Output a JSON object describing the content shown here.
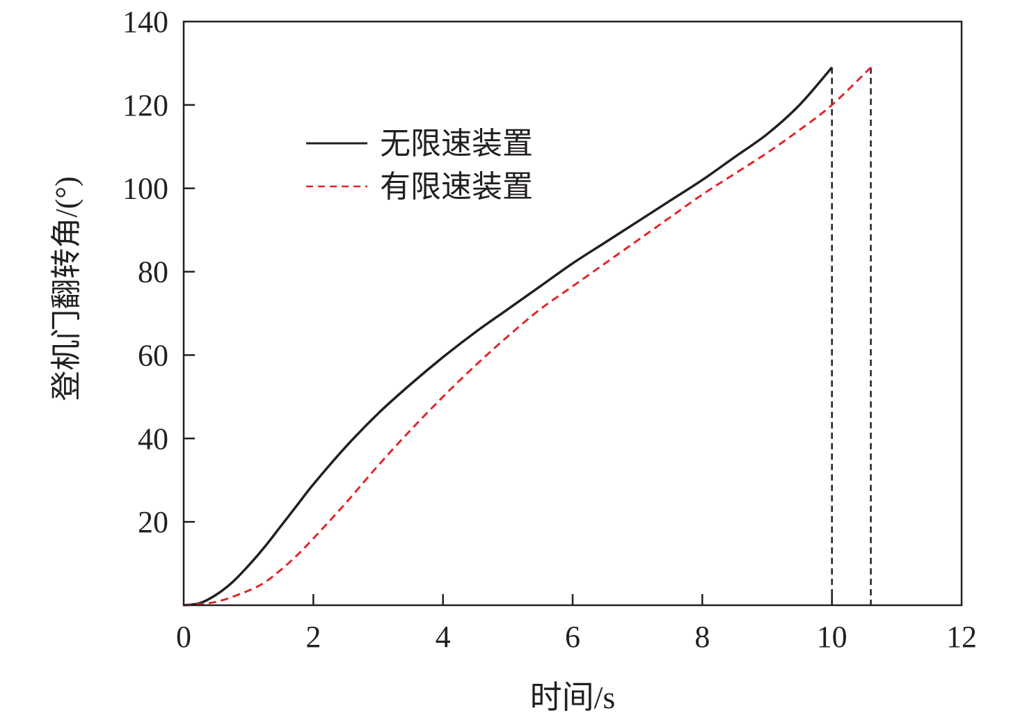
{
  "chart_data": {
    "type": "line",
    "title": "",
    "xlabel": "时间/s",
    "ylabel": "登机门翻转角/(°)",
    "xlim": [
      0,
      12
    ],
    "ylim": [
      0,
      140
    ],
    "x_ticks": [
      0,
      2,
      4,
      6,
      8,
      10,
      12
    ],
    "y_ticks": [
      20,
      40,
      60,
      80,
      100,
      120,
      140
    ],
    "x_tick_labels": [
      "0",
      "2",
      "4",
      "6",
      "8",
      "10",
      "12"
    ],
    "y_tick_labels": [
      "20",
      "40",
      "60",
      "80",
      "100",
      "120",
      "140"
    ],
    "grid": false,
    "legend_position": "upper-left",
    "series": [
      {
        "name": "无限速装置",
        "color": "#231f20",
        "dash": "solid",
        "points": [
          [
            0,
            0
          ],
          [
            0.25,
            0.5
          ],
          [
            0.5,
            2.5
          ],
          [
            0.75,
            5.5
          ],
          [
            1.0,
            9.5
          ],
          [
            1.25,
            14
          ],
          [
            1.5,
            19
          ],
          [
            1.75,
            24
          ],
          [
            2.0,
            29
          ],
          [
            2.5,
            38
          ],
          [
            3.0,
            46
          ],
          [
            3.5,
            53
          ],
          [
            4.0,
            59.5
          ],
          [
            4.5,
            65.5
          ],
          [
            5.0,
            71
          ],
          [
            5.5,
            76.5
          ],
          [
            6.0,
            82
          ],
          [
            6.5,
            87
          ],
          [
            7.0,
            92
          ],
          [
            7.5,
            97
          ],
          [
            8.0,
            102
          ],
          [
            8.5,
            107.5
          ],
          [
            9.0,
            113
          ],
          [
            9.5,
            120
          ],
          [
            10.0,
            129
          ]
        ]
      },
      {
        "name": "有限速装置",
        "color": "#e0262b",
        "dash": "dashed",
        "points": [
          [
            0,
            0
          ],
          [
            0.5,
            0.8
          ],
          [
            1.0,
            3.5
          ],
          [
            1.25,
            5.5
          ],
          [
            1.5,
            8.5
          ],
          [
            1.75,
            12
          ],
          [
            2.0,
            16
          ],
          [
            2.5,
            24.5
          ],
          [
            3.0,
            33.5
          ],
          [
            3.5,
            42
          ],
          [
            4.0,
            50
          ],
          [
            4.5,
            57.5
          ],
          [
            5.0,
            64.5
          ],
          [
            5.5,
            71
          ],
          [
            6.0,
            76.5
          ],
          [
            6.5,
            82
          ],
          [
            7.0,
            87.5
          ],
          [
            7.5,
            93
          ],
          [
            8.0,
            98.5
          ],
          [
            8.5,
            103.5
          ],
          [
            9.0,
            108.5
          ],
          [
            9.5,
            114
          ],
          [
            10.0,
            120
          ],
          [
            10.6,
            129
          ]
        ]
      }
    ],
    "reference_lines": [
      {
        "x": 10.0,
        "y": 129,
        "color": "#231f20",
        "dash": "dashed"
      },
      {
        "x": 10.6,
        "y": 129,
        "color": "#231f20",
        "dash": "dashed"
      }
    ]
  }
}
